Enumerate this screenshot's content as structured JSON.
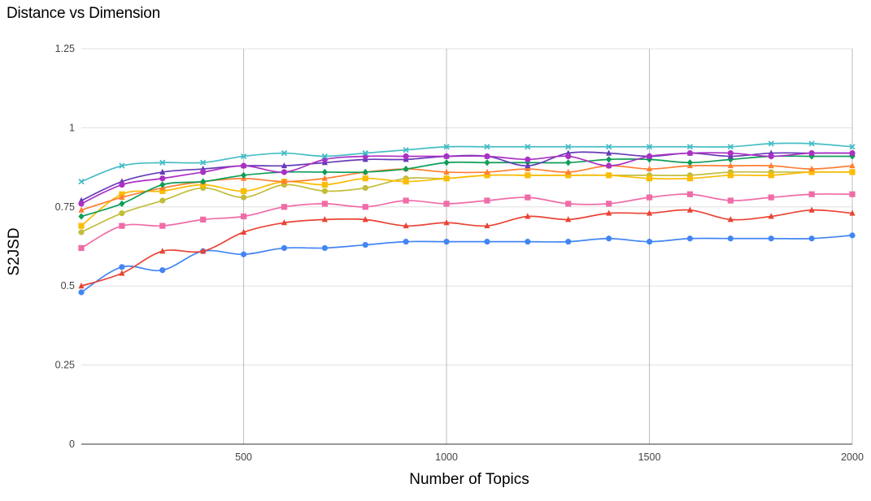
{
  "chart_data": {
    "type": "line",
    "title": "Distance vs Dimension",
    "xlabel": "Number of Topics",
    "ylabel": "S2JSD",
    "xlim": [
      100,
      2000
    ],
    "ylim": [
      0,
      1.25
    ],
    "x_ticks": [
      "500",
      "1000",
      "1500",
      "2000"
    ],
    "x_tick_values": [
      500,
      1000,
      1500,
      2000
    ],
    "y_ticks": [
      "0",
      "0.25",
      "0.5",
      "0.75",
      "1",
      "1.25"
    ],
    "y_tick_values": [
      0,
      0.25,
      0.5,
      0.75,
      1,
      1.25
    ],
    "grid": true,
    "legend": "none",
    "x": [
      100,
      200,
      300,
      400,
      500,
      600,
      700,
      800,
      900,
      1000,
      1100,
      1200,
      1300,
      1400,
      1500,
      1600,
      1700,
      1800,
      1900,
      2000
    ],
    "series": [
      {
        "color": "#4285f4",
        "marker": "circle",
        "values": [
          0.48,
          0.56,
          0.55,
          0.61,
          0.6,
          0.62,
          0.62,
          0.63,
          0.64,
          0.64,
          0.64,
          0.64,
          0.64,
          0.65,
          0.64,
          0.65,
          0.65,
          0.65,
          0.65,
          0.66
        ]
      },
      {
        "color": "#ea4335",
        "marker": "triangle",
        "values": [
          0.5,
          0.54,
          0.61,
          0.61,
          0.67,
          0.7,
          0.71,
          0.71,
          0.69,
          0.7,
          0.69,
          0.72,
          0.71,
          0.73,
          0.73,
          0.74,
          0.71,
          0.72,
          0.74,
          0.73
        ]
      },
      {
        "color": "#f06ba8",
        "marker": "square",
        "values": [
          0.62,
          0.69,
          0.69,
          0.71,
          0.72,
          0.75,
          0.76,
          0.75,
          0.77,
          0.76,
          0.77,
          0.78,
          0.76,
          0.76,
          0.78,
          0.79,
          0.77,
          0.78,
          0.79,
          0.79
        ]
      },
      {
        "color": "#c2bd3a",
        "marker": "circle",
        "values": [
          0.67,
          0.73,
          0.77,
          0.81,
          0.78,
          0.82,
          0.8,
          0.81,
          0.84,
          0.84,
          0.85,
          0.85,
          0.85,
          0.85,
          0.85,
          0.85,
          0.86,
          0.86,
          0.86,
          0.86
        ]
      },
      {
        "color": "#fbbc04",
        "marker": "square",
        "values": [
          0.69,
          0.79,
          0.8,
          0.82,
          0.8,
          0.83,
          0.82,
          0.84,
          0.83,
          0.84,
          0.85,
          0.85,
          0.85,
          0.85,
          0.84,
          0.84,
          0.85,
          0.85,
          0.86,
          0.86
        ]
      },
      {
        "color": "#ff7f32",
        "marker": "triangle",
        "values": [
          0.74,
          0.78,
          0.81,
          0.83,
          0.84,
          0.83,
          0.84,
          0.86,
          0.87,
          0.86,
          0.86,
          0.87,
          0.86,
          0.88,
          0.87,
          0.88,
          0.88,
          0.88,
          0.87,
          0.88
        ]
      },
      {
        "color": "#0f9d58",
        "marker": "diamond",
        "values": [
          0.72,
          0.76,
          0.82,
          0.83,
          0.85,
          0.86,
          0.86,
          0.86,
          0.87,
          0.89,
          0.89,
          0.89,
          0.89,
          0.9,
          0.9,
          0.89,
          0.9,
          0.91,
          0.91,
          0.91
        ]
      },
      {
        "color": "#673ab7",
        "marker": "triangle",
        "values": [
          0.77,
          0.83,
          0.86,
          0.87,
          0.88,
          0.88,
          0.89,
          0.9,
          0.9,
          0.91,
          0.91,
          0.88,
          0.92,
          0.92,
          0.91,
          0.92,
          0.91,
          0.92,
          0.92,
          0.92
        ]
      },
      {
        "color": "#ab30c4",
        "marker": "circle",
        "values": [
          0.76,
          0.82,
          0.84,
          0.86,
          0.88,
          0.86,
          0.9,
          0.91,
          0.91,
          0.91,
          0.91,
          0.9,
          0.91,
          0.88,
          0.91,
          0.92,
          0.92,
          0.91,
          0.92,
          0.92
        ]
      },
      {
        "color": "#46bdc6",
        "marker": "cross",
        "values": [
          0.83,
          0.88,
          0.89,
          0.89,
          0.91,
          0.92,
          0.91,
          0.92,
          0.93,
          0.94,
          0.94,
          0.94,
          0.94,
          0.94,
          0.94,
          0.94,
          0.94,
          0.95,
          0.95,
          0.94
        ]
      }
    ]
  }
}
